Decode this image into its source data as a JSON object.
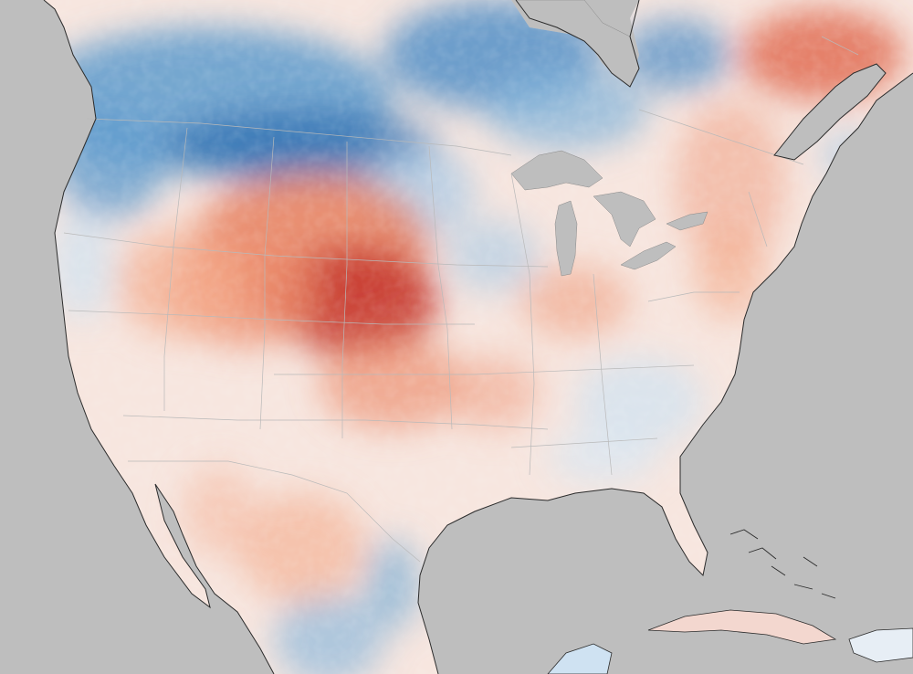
{
  "map": {
    "kind": "land-surface-temperature-anomaly",
    "region": "North America",
    "colors": {
      "ocean": "#bebebe",
      "water": "#9e9e9e",
      "land_base": "#f6e8e2",
      "coast": "#2b2b2b",
      "borders": "#a8a8a8",
      "warm_dark": "#b2182b",
      "warm": "#e46a4f",
      "warm_light": "#f7b89b",
      "neutral": "#f7f7f7",
      "cool_light": "#c9dff0",
      "cool": "#6aa6d3",
      "cool_dark": "#2166ac"
    },
    "layers": [
      "ocean",
      "land",
      "anomaly-field",
      "lakes",
      "state-borders",
      "coastlines"
    ]
  }
}
